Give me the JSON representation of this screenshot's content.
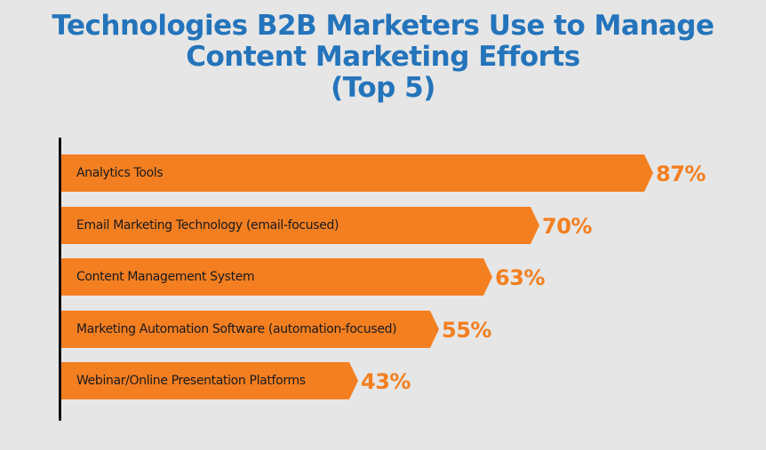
{
  "chart_data": {
    "type": "bar",
    "orientation": "horizontal",
    "title": [
      "Technologies B2B Marketers Use to Manage",
      "Content Marketing Efforts",
      "(Top 5)"
    ],
    "categories": [
      "Analytics Tools",
      "Email Marketing Technology (email-focused)",
      "Content Management System",
      "Marketing Automation Software (automation-focused)",
      "Webinar/Online Presentation Platforms"
    ],
    "values": [
      87,
      70,
      63,
      55,
      43
    ],
    "value_labels": [
      "87%",
      "70%",
      "63%",
      "55%",
      "43%"
    ],
    "unit": "%",
    "xlim": [
      0,
      100
    ],
    "grid": false,
    "legend": "none"
  },
  "colors": {
    "bar": "#f47f20",
    "title": "#2474bb",
    "value_label": "#f47f20",
    "background": "#e6e6e6",
    "axis": "#111111"
  }
}
